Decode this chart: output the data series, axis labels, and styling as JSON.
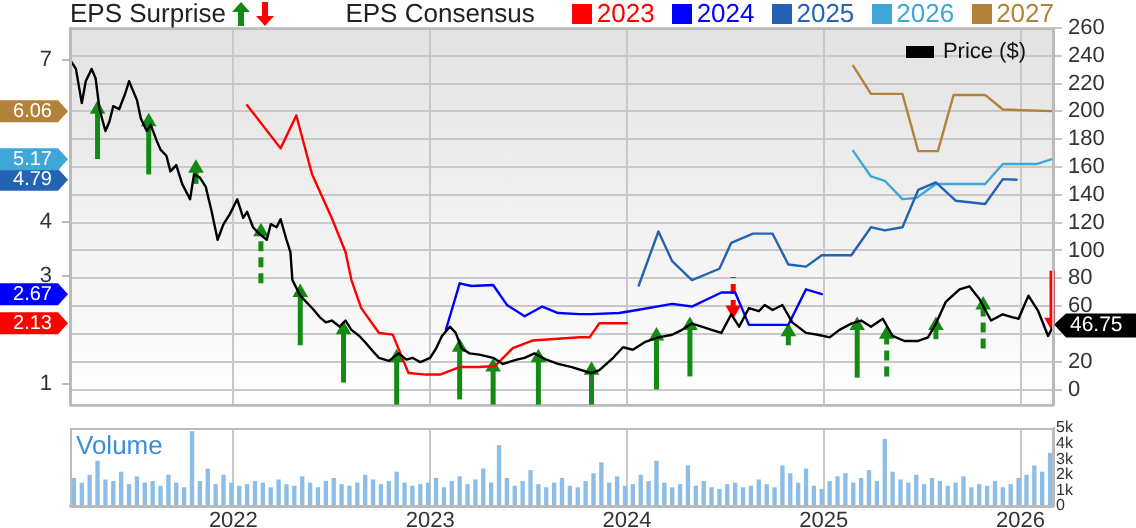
{
  "chart_data": [
    {
      "type": "line",
      "title": "EPS Surprise",
      "legend_title": "EPS Consensus",
      "legend": "top",
      "grid": true,
      "tick_labels": "y",
      "xlim": [
        2021.17,
        2026.17
      ],
      "xticks": [
        2022,
        2023,
        2024,
        2025,
        2026
      ],
      "ylim": [
        0.62,
        7.6
      ],
      "yticks": [
        1,
        {
          "value": 2.13,
          "label": "2.13"
        },
        {
          "value": 2.67,
          "label": "2.67"
        },
        3,
        4,
        {
          "value": 4.79,
          "label": "4.79"
        },
        {
          "value": 5.17,
          "label": "5.17"
        },
        {
          "value": 6.06,
          "label": "6.06"
        },
        7
      ],
      "y2lim": [
        -11,
        260
      ],
      "y2ticks": [
        0,
        20,
        {
          "value": 40,
          "label": null
        },
        60,
        80,
        100,
        120,
        140,
        160,
        180,
        200,
        220,
        240,
        260
      ],
      "series": [
        {
          "name": "Price ($)",
          "type": "line",
          "axis": "y2",
          "color": "#000000",
          "x": [
            2021.17,
            2021.2,
            2021.23,
            2021.25,
            2021.28,
            2021.3,
            2021.32,
            2021.35,
            2021.37,
            2021.39,
            2021.42,
            2021.45,
            2021.47,
            2021.51,
            2021.53,
            2021.56,
            2021.58,
            2021.61,
            2021.63,
            2021.66,
            2021.68,
            2021.71,
            2021.74,
            2021.78,
            2021.8,
            2021.83,
            2021.86,
            2021.89,
            2021.92,
            2021.95,
            2021.98,
            2022.02,
            2022.05,
            2022.07,
            2022.1,
            2022.13,
            2022.17,
            2022.19,
            2022.22,
            2022.24,
            2022.27,
            2022.29,
            2022.3,
            2022.34,
            2022.37,
            2022.4,
            2022.44,
            2022.47,
            2022.5,
            2022.54,
            2022.57,
            2022.6,
            2022.64,
            2022.67,
            2022.71,
            2022.74,
            2022.79,
            2022.84,
            2022.88,
            2022.91,
            2022.95,
            2023.0,
            2023.03,
            2023.06,
            2023.1,
            2023.13,
            2023.16,
            2023.2,
            2023.25,
            2023.32,
            2023.37,
            2023.44,
            2023.48,
            2023.53,
            2023.59,
            2023.65,
            2023.72,
            2023.82,
            2023.86,
            2023.93,
            2023.98,
            2024.03,
            2024.09,
            2024.16,
            2024.23,
            2024.28,
            2024.33,
            2024.38,
            2024.43,
            2024.48,
            2024.53,
            2024.57,
            2024.62,
            2024.67,
            2024.7,
            2024.74,
            2024.79,
            2024.84,
            2024.91,
            2024.97,
            2025.03,
            2025.08,
            2025.14,
            2025.19,
            2025.24,
            2025.3,
            2025.35,
            2025.41,
            2025.48,
            2025.53,
            2025.57,
            2025.62,
            2025.69,
            2025.74,
            2025.79,
            2025.85,
            2025.91,
            2025.96,
            2025.99,
            2026.04,
            2026.09,
            2026.14,
            2026.17
          ],
          "values": [
            237.3,
            230.6,
            206.0,
            221.7,
            230.6,
            223.9,
            201.6,
            185.9,
            192.6,
            203.8,
            201.6,
            212.7,
            221.7,
            208.3,
            194.9,
            185.9,
            190.4,
            179.2,
            172.5,
            168.1,
            156.9,
            161.4,
            147.9,
            136.8,
            154.7,
            152.4,
            145.7,
            127.8,
            107.7,
            118.9,
            125.6,
            136.8,
            123.4,
            127.8,
            116.7,
            112.2,
            107.7,
            118.9,
            116.7,
            122.5,
            107.7,
            98.8,
            78.7,
            67.5,
            63.0,
            58.6,
            51.9,
            48.3,
            49.6,
            45.2,
            49.6,
            42.9,
            38.5,
            34.0,
            27.3,
            22.8,
            20.6,
            26.0,
            21.5,
            22.8,
            19.7,
            22.8,
            29.5,
            38.5,
            45.2,
            40.7,
            29.5,
            26.0,
            25.1,
            22.8,
            18.4,
            21.5,
            22.8,
            26.0,
            21.5,
            18.4,
            16.1,
            11.7,
            13.9,
            22.8,
            30.4,
            28.6,
            34.0,
            37.5,
            39.4,
            42.9,
            47.4,
            45.2,
            42.9,
            40.7,
            54.1,
            45.2,
            58.6,
            56.3,
            60.8,
            57.2,
            60.8,
            48.3,
            40.7,
            39.4,
            37.5,
            42.9,
            47.4,
            49.6,
            45.2,
            50.9,
            38.5,
            34.9,
            34.9,
            37.5,
            47.4,
            63.0,
            72.0,
            74.2,
            65.3,
            49.6,
            54.1,
            51.9,
            50.9,
            67.5,
            56.3,
            38.5,
            46.75
          ],
          "value_labels": [
            null,
            null,
            null,
            null,
            null,
            null,
            null,
            null,
            null,
            null,
            null,
            null,
            null,
            null,
            null,
            null,
            null,
            null,
            null,
            null,
            null,
            null,
            null,
            null,
            null,
            null,
            null,
            null,
            null,
            null,
            null,
            null,
            null,
            null,
            null,
            null,
            null,
            null,
            null,
            null,
            null,
            null,
            null,
            null,
            null,
            null,
            null,
            null,
            null,
            null,
            null,
            null,
            null,
            null,
            null,
            null,
            null,
            null,
            null,
            null,
            null,
            null,
            null,
            null,
            null,
            null,
            null,
            null,
            null,
            null,
            null,
            null,
            null,
            null,
            null,
            null,
            null,
            null,
            null,
            null,
            null,
            null,
            null,
            null,
            null,
            null,
            null,
            null,
            null,
            null,
            null,
            null,
            null,
            null,
            null,
            null,
            null,
            null,
            null,
            null,
            null,
            null,
            null,
            null,
            null,
            null,
            null,
            null,
            null,
            null,
            null,
            null,
            null,
            null,
            null,
            null,
            null,
            null,
            null,
            null,
            null,
            null,
            "46.75"
          ]
        },
        {
          "name": "2023",
          "type": "line",
          "color": "#ff0000",
          "x": [
            2022.07,
            2022.24,
            2022.32,
            2022.4,
            2022.5,
            2022.57,
            2022.6,
            2022.65,
            2022.74,
            2022.81,
            2022.89,
            2022.98,
            2023.05,
            2023.15,
            2023.25,
            2023.33,
            2023.42,
            2023.52,
            2023.76,
            2023.81,
            2023.86,
            2024.0
          ],
          "values": [
            6.17,
            5.37,
            5.98,
            4.89,
            4.08,
            3.45,
            2.93,
            2.41,
            1.95,
            1.92,
            1.21,
            1.18,
            1.18,
            1.32,
            1.32,
            1.34,
            1.67,
            1.81,
            1.87,
            1.87,
            2.13,
            2.13
          ]
        },
        {
          "name": "2024",
          "type": "line",
          "color": "#0000ff",
          "x": [
            2023.08,
            2023.15,
            2023.21,
            2023.32,
            2023.39,
            2023.48,
            2023.57,
            2023.65,
            2023.76,
            2023.82,
            2023.96,
            2024.06,
            2024.23,
            2024.33,
            2024.48,
            2024.55,
            2024.62,
            2024.82,
            2024.91,
            2024.99
          ],
          "values": [
            2.01,
            2.87,
            2.82,
            2.84,
            2.47,
            2.26,
            2.44,
            2.32,
            2.3,
            2.3,
            2.32,
            2.38,
            2.49,
            2.44,
            2.7,
            2.7,
            2.1,
            2.1,
            2.76,
            2.67
          ]
        },
        {
          "name": "2025",
          "type": "line",
          "color": "#2463b4",
          "x": [
            2024.06,
            2024.16,
            2024.23,
            2024.33,
            2024.47,
            2024.53,
            2024.64,
            2024.74,
            2024.82,
            2024.91,
            2024.99,
            2025.14,
            2025.24,
            2025.31,
            2025.4,
            2025.48,
            2025.57,
            2025.67,
            2025.82,
            2025.91,
            2025.98
          ],
          "values": [
            2.83,
            3.83,
            3.28,
            2.93,
            3.14,
            3.62,
            3.79,
            3.79,
            3.22,
            3.18,
            3.39,
            3.39,
            3.91,
            3.85,
            3.91,
            4.6,
            4.74,
            4.4,
            4.34,
            4.8,
            4.79
          ]
        },
        {
          "name": "2026",
          "type": "line",
          "color": "#3fa6d8",
          "x": [
            2025.15,
            2025.24,
            2025.31,
            2025.4,
            2025.47,
            2025.57,
            2025.82,
            2025.91,
            2026.08,
            2026.16
          ],
          "values": [
            5.32,
            4.85,
            4.77,
            4.43,
            4.45,
            4.71,
            4.71,
            5.08,
            5.08,
            5.17
          ]
        },
        {
          "name": "2027",
          "type": "line",
          "color": "#b3823a",
          "x": [
            2025.15,
            2025.24,
            2025.4,
            2025.48,
            2025.58,
            2025.66,
            2025.82,
            2025.91,
            2026.16
          ],
          "values": [
            6.9,
            6.38,
            6.38,
            5.32,
            5.32,
            6.36,
            6.36,
            6.09,
            6.06
          ]
        },
        {
          "type": "scatter",
          "axis": "y2",
          "color": "#138a13",
          "marker": "triangle",
          "line_style": "solid",
          "x": [
            2021.31,
            2021.57,
            2021.81,
            2022.34,
            2022.56,
            2022.83,
            2023.15,
            2023.32,
            2023.55,
            2023.82,
            2024.15,
            2024.32,
            2025.17,
            2025.57
          ],
          "values": [
            201.6,
            192.6,
            159.1,
            69.7,
            42.9,
            22.8,
            30.4,
            16.1,
            22.8,
            13.9,
            38.5,
            46.1,
            46.1,
            46.1
          ],
          "errors": [
            [
              165.8,
              201.6
            ],
            [
              154.7,
              192.6
            ],
            [
              147.9,
              159.1
            ],
            [
              31.8,
              69.7
            ],
            [
              5.0,
              42.9
            ],
            [
              -11,
              22.8
            ],
            [
              -7.1,
              30.4
            ],
            [
              -11,
              16.1
            ],
            [
              -11,
              22.8
            ],
            [
              -11,
              13.9
            ],
            [
              0,
              38.5
            ],
            [
              9.4,
              46.1
            ],
            [
              8.5,
              46.1
            ],
            [
              36.2,
              46.1
            ]
          ]
        },
        {
          "type": "scatter",
          "axis": "y2",
          "color": "#138a13",
          "marker": "triangle",
          "line_style": "dashed",
          "x": [
            2022.14,
            2024.82,
            2025.32,
            2025.81
          ],
          "values": [
            113.5,
            41.6,
            39.8,
            60.8
          ],
          "errors": [
            [
              76.5,
              113.5
            ],
            [
              31.8,
              41.6
            ],
            [
              9.4,
              39.8
            ],
            [
              29.5,
              60.8
            ]
          ]
        },
        {
          "type": "scatter",
          "axis": "y2",
          "color": "#ff0000",
          "marker": "triangle",
          "line_style": "dashed",
          "x": [
            2024.54
          ],
          "values": [
            57.2
          ],
          "errors": [
            [
              57.2,
              81.0
            ]
          ]
        },
        {
          "type": "scatter",
          "axis": "y2",
          "color": "#ff0000",
          "marker": "triangle",
          "line_style": "solid",
          "x": [
            2026.16
          ],
          "values": [
            48.3
          ],
          "errors": [
            [
              48.3,
              85.4
            ]
          ]
        }
      ]
    },
    {
      "type": "bar",
      "title": "Volume",
      "grid": "x",
      "xlim": [
        2021.17,
        2026.17
      ],
      "xticks": [
        2022,
        2023,
        2024,
        2025,
        2026
      ],
      "y2lim": [
        0,
        5000
      ],
      "y2ticks": [
        0,
        {
          "value": 1000,
          "label": "1k"
        },
        {
          "value": 2000,
          "label": "2k"
        },
        {
          "value": 3000,
          "label": "3k"
        },
        {
          "value": 4000,
          "label": "4k"
        },
        {
          "value": 5000,
          "label": "5k"
        }
      ],
      "series": [
        {
          "axis": "y2",
          "color": "#8cbde6",
          "x": [
            2021.19,
            2021.23,
            2021.27,
            2021.31,
            2021.35,
            2021.39,
            2021.43,
            2021.47,
            2021.51,
            2021.55,
            2021.59,
            2021.63,
            2021.67,
            2021.71,
            2021.75,
            2021.79,
            2021.83,
            2021.87,
            2021.91,
            2021.95,
            2021.99,
            2022.03,
            2022.07,
            2022.11,
            2022.15,
            2022.19,
            2022.23,
            2022.27,
            2022.31,
            2022.35,
            2022.39,
            2022.43,
            2022.47,
            2022.51,
            2022.55,
            2022.59,
            2022.63,
            2022.67,
            2022.71,
            2022.75,
            2022.79,
            2022.83,
            2022.87,
            2022.91,
            2022.95,
            2022.99,
            2023.03,
            2023.07,
            2023.11,
            2023.15,
            2023.19,
            2023.23,
            2023.27,
            2023.31,
            2023.35,
            2023.39,
            2023.43,
            2023.47,
            2023.51,
            2023.55,
            2023.59,
            2023.63,
            2023.67,
            2023.71,
            2023.75,
            2023.79,
            2023.83,
            2023.87,
            2023.91,
            2023.95,
            2023.99,
            2024.03,
            2024.07,
            2024.11,
            2024.15,
            2024.19,
            2024.23,
            2024.27,
            2024.31,
            2024.35,
            2024.39,
            2024.43,
            2024.47,
            2024.51,
            2024.55,
            2024.59,
            2024.63,
            2024.67,
            2024.71,
            2024.75,
            2024.79,
            2024.83,
            2024.87,
            2024.91,
            2024.95,
            2024.99,
            2025.03,
            2025.07,
            2025.11,
            2025.15,
            2025.19,
            2025.23,
            2025.27,
            2025.31,
            2025.35,
            2025.39,
            2025.43,
            2025.47,
            2025.51,
            2025.55,
            2025.59,
            2025.63,
            2025.67,
            2025.71,
            2025.75,
            2025.79,
            2025.83,
            2025.87,
            2025.91,
            2025.95,
            2025.99,
            2026.03,
            2026.07,
            2026.11,
            2026.15
          ],
          "values": [
            1800,
            1500,
            2000,
            2900,
            1700,
            1600,
            2200,
            1400,
            1900,
            1500,
            1600,
            1300,
            2000,
            1500,
            1200,
            4800,
            1600,
            2400,
            1400,
            2000,
            1500,
            1300,
            1400,
            1600,
            1500,
            1200,
            1700,
            1400,
            1300,
            1900,
            1500,
            1200,
            1600,
            1800,
            1400,
            1300,
            1500,
            2000,
            1700,
            1400,
            1600,
            2200,
            1500,
            1300,
            1400,
            1500,
            1800,
            1200,
            1600,
            1900,
            1400,
            1700,
            2400,
            1500,
            3900,
            1800,
            1300,
            1600,
            2300,
            1400,
            1200,
            1500,
            1800,
            1300,
            1200,
            1600,
            2100,
            2800,
            1500,
            1900,
            1300,
            1400,
            2000,
            1600,
            2900,
            1500,
            1200,
            1400,
            2600,
            1300,
            1600,
            1200,
            1100,
            1400,
            1500,
            1200,
            1300,
            1700,
            1400,
            1200,
            2600,
            2100,
            1500,
            2400,
            1300,
            1100,
            1600,
            1900,
            2100,
            1500,
            1800,
            2300,
            1600,
            4300,
            2200,
            1700,
            1500,
            2000,
            1400,
            1800,
            1600,
            1300,
            1500,
            1900,
            1200,
            1400,
            1300,
            1600,
            1200,
            1400,
            1800,
            2000,
            2600,
            2200,
            3400
          ]
        }
      ]
    }
  ]
}
